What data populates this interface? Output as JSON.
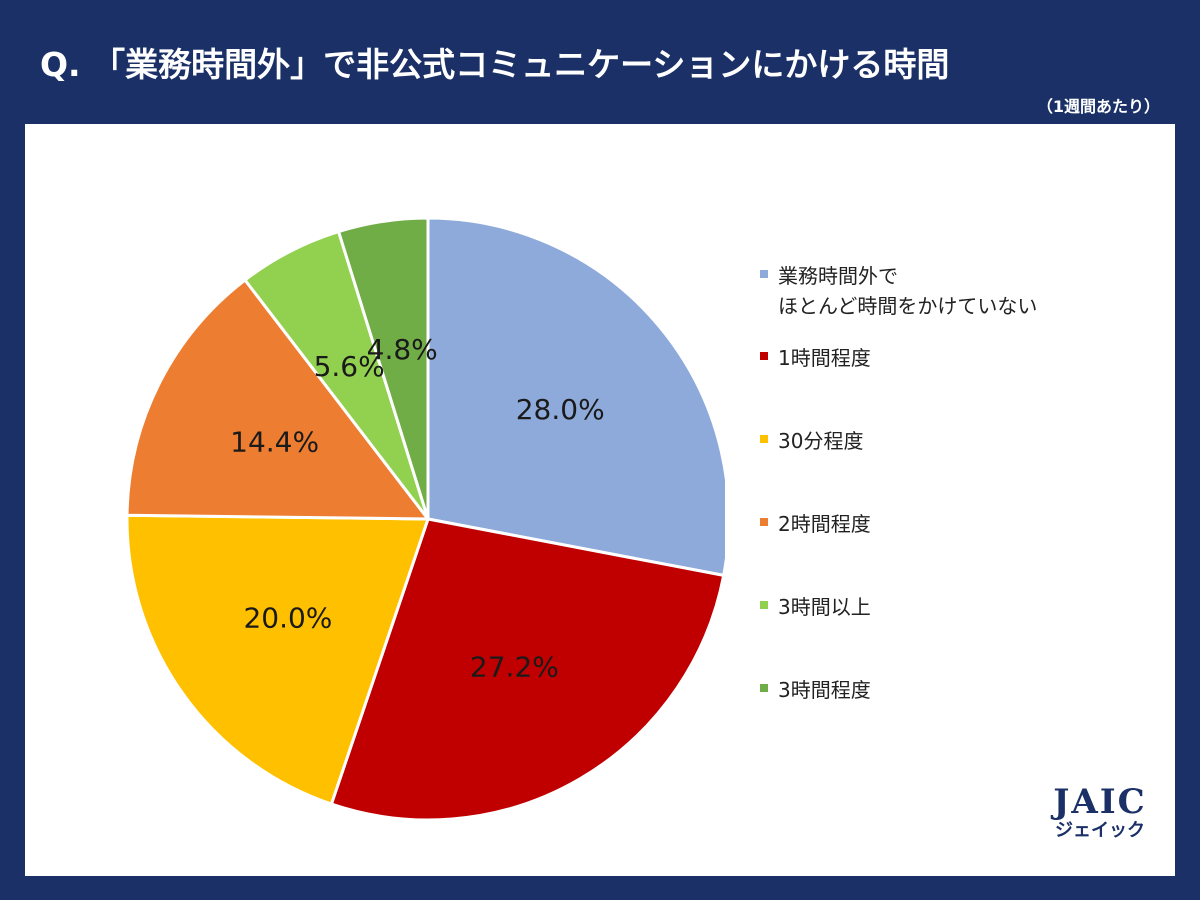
{
  "header": {
    "title": "Q. 「業務時間外」で非公式コミュニケーションにかける時間",
    "subtitle": "（1週間あたり）"
  },
  "chart_data": {
    "type": "pie",
    "start_angle_deg": 0,
    "direction": "clockwise",
    "legend_position": "right",
    "slices": [
      {
        "label": "業務時間外で\nほとんど時間をかけていない",
        "value": 28.0,
        "display": "28.0%",
        "color": "#8eaadb"
      },
      {
        "label": "1時間程度",
        "value": 27.2,
        "display": "27.2%",
        "color": "#c00000"
      },
      {
        "label": "30分程度",
        "value": 20.0,
        "display": "20.0%",
        "color": "#ffc000"
      },
      {
        "label": "2時間程度",
        "value": 14.4,
        "display": "14.4%",
        "color": "#ed7d31"
      },
      {
        "label": "3時間以上",
        "value": 5.6,
        "display": "5.6%",
        "color": "#92d050"
      },
      {
        "label": "3時間程度",
        "value": 4.8,
        "display": "4.8%",
        "color": "#70ad47"
      }
    ]
  },
  "logo": {
    "main": "JAIC",
    "sub": "ジェイック"
  }
}
